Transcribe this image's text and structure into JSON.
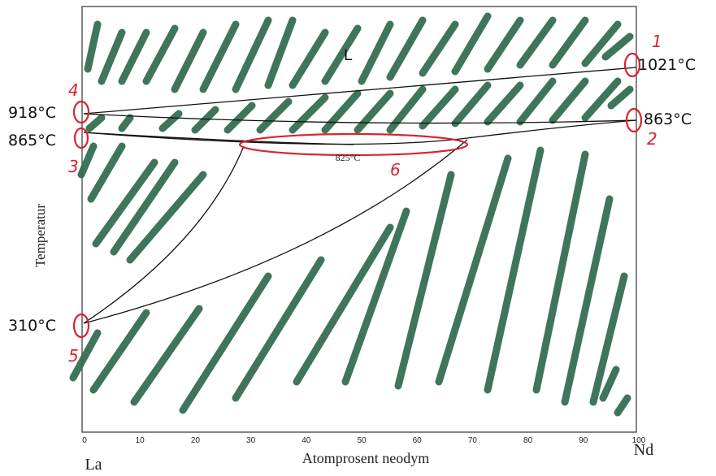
{
  "diagram": {
    "region_label": "L",
    "temperatures": {
      "liquidus_right": "1021°C",
      "left_top": "918°C",
      "left_mid": "865°C",
      "right_mid": "863°C",
      "minimum": "825°C",
      "left_low": "310°C"
    },
    "y_axis_label": "Temperatur",
    "x_axis": {
      "label": "Atomprosent neodym",
      "ticks": [
        0,
        10,
        20,
        30,
        40,
        50,
        60,
        70,
        80,
        90,
        100
      ],
      "left_element": "La",
      "right_element": "Nd"
    },
    "annotations": [
      "1",
      "2",
      "3",
      "4",
      "5",
      "6"
    ]
  }
}
